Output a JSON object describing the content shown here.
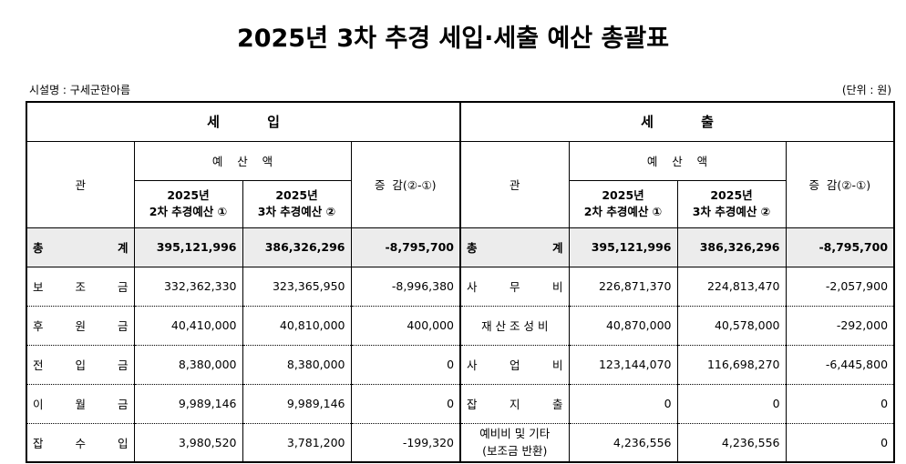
{
  "title": "2025년 3차 추경 세입·세출 예산 총괄표",
  "facility": "시설명 : 구세군한아름",
  "unit": "(단위 : 원)",
  "income": {
    "header": "세          입",
    "col_item": "관",
    "col_budget": "예    산    액",
    "col_prev": "2025년\n2차 추경예산 ①",
    "col_prev_l1": "2025년",
    "col_prev_l2": "2차 추경예산 ①",
    "col_curr_l1": "2025년",
    "col_curr_l2": "3차 추경예산 ②",
    "col_diff": "증  감(②-①)",
    "total": {
      "label_a": "총",
      "label_b": "계",
      "prev": "395,121,996",
      "curr": "386,326,296",
      "diff": "-8,795,700"
    },
    "rows": [
      {
        "chars": [
          "보",
          "조",
          "금"
        ],
        "prev": "332,362,330",
        "curr": "323,365,950",
        "diff": "-8,996,380"
      },
      {
        "chars": [
          "후",
          "원",
          "금"
        ],
        "prev": "40,410,000",
        "curr": "40,810,000",
        "diff": "400,000"
      },
      {
        "chars": [
          "전",
          "입",
          "금"
        ],
        "prev": "8,380,000",
        "curr": "8,380,000",
        "diff": "0"
      },
      {
        "chars": [
          "이",
          "월",
          "금"
        ],
        "prev": "9,989,146",
        "curr": "9,989,146",
        "diff": "0"
      },
      {
        "chars": [
          "잡",
          "수",
          "입"
        ],
        "prev": "3,980,520",
        "curr": "3,781,200",
        "diff": "-199,320"
      }
    ]
  },
  "expense": {
    "header": "세          출",
    "col_item": "관",
    "col_budget": "예    산    액",
    "col_prev_l1": "2025년",
    "col_prev_l2": "2차 추경예산 ①",
    "col_curr_l1": "2025년",
    "col_curr_l2": "3차 추경예산 ②",
    "col_diff": "증  감(②-①)",
    "total": {
      "label_a": "총",
      "label_b": "계",
      "prev": "395,121,996",
      "curr": "386,326,296",
      "diff": "-8,795,700"
    },
    "rows": [
      {
        "chars": [
          "사",
          "무",
          "비"
        ],
        "prev": "226,871,370",
        "curr": "224,813,470",
        "diff": "-2,057,900"
      },
      {
        "label": "재 산 조 성 비",
        "prev": "40,870,000",
        "curr": "40,578,000",
        "diff": "-292,000"
      },
      {
        "chars": [
          "사",
          "업",
          "비"
        ],
        "prev": "123,144,070",
        "curr": "116,698,270",
        "diff": "-6,445,800"
      },
      {
        "chars": [
          "잡",
          "지",
          "출"
        ],
        "prev": "0",
        "curr": "0",
        "diff": "0"
      },
      {
        "label_l1": "예비비 및 기타",
        "label_l2": "(보조금 반환)",
        "prev": "4,236,556",
        "curr": "4,236,556",
        "diff": "0"
      }
    ]
  }
}
